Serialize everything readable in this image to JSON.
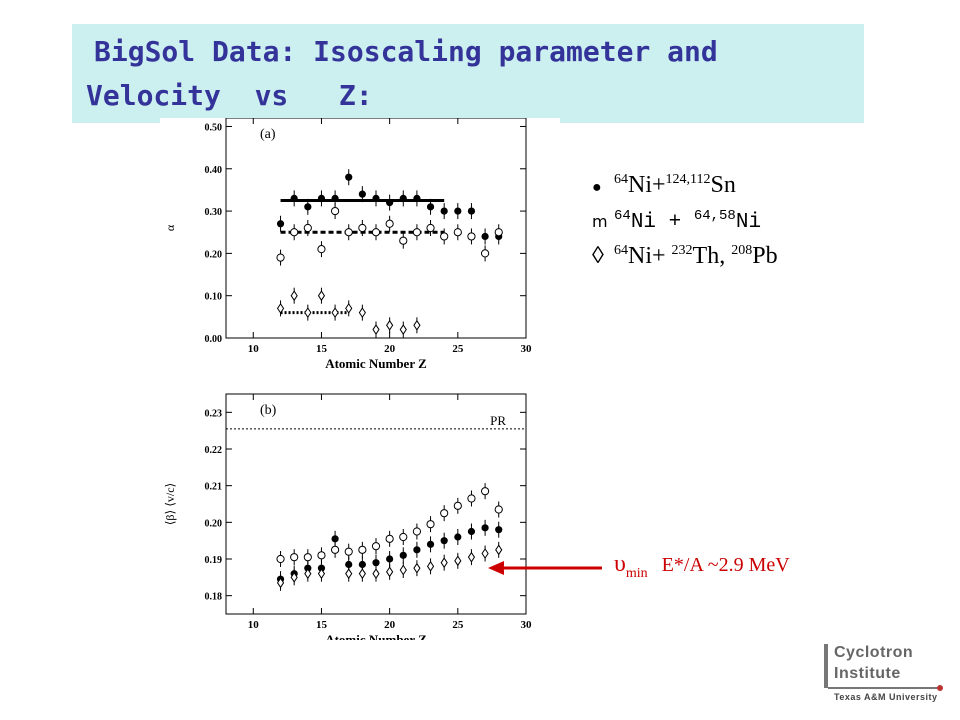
{
  "slide": {
    "title_line1": "BigSol Data: Isoscaling parameter and",
    "title_line2": "Velocity  vs   Z:"
  },
  "legend": [
    {
      "marker": "●",
      "marker_name": "filled-circle-icon",
      "a": "64",
      "b": "Ni+",
      "c": "124,112",
      "d": "Sn",
      "e": "",
      "f": "",
      "g": ""
    },
    {
      "marker": "m",
      "marker_name": "open-circle-icon",
      "a": "64",
      "b": "Ni + ",
      "c": "64,58",
      "d": "Ni",
      "e": "",
      "f": "",
      "g": ""
    },
    {
      "marker": "◊",
      "marker_name": "open-diamond-icon",
      "a": "64",
      "b": "Ni+ ",
      "c": "232",
      "d": "Th, ",
      "e": "208",
      "f": "Pb",
      "g": ""
    }
  ],
  "annotation": {
    "symbol": "υ",
    "sub": "min",
    "text": "E*/A ~2.9 MeV",
    "color": "#cc0000"
  },
  "logo": {
    "line1": "Cyclotron",
    "line2": "Institute",
    "line3": "Texas A&M University"
  },
  "colors": {
    "title_bg": "#ccf0f0",
    "title_text": "#333399",
    "arrow": "#cc0000"
  },
  "chart_data": [
    {
      "type": "scatter",
      "panel_label": "(a)",
      "xlabel": "Atomic Number Z",
      "ylabel": "α",
      "xlim": [
        8,
        30
      ],
      "ylim": [
        0,
        0.52
      ],
      "xticks": [
        10,
        15,
        20,
        25,
        30
      ],
      "yticks": [
        0.0,
        0.1,
        0.2,
        0.3,
        0.4,
        0.5
      ],
      "ytick_labels": [
        "0.00",
        "0.10",
        "0.20",
        "0.30",
        "0.40",
        "0.50"
      ],
      "series": [
        {
          "name": "64Ni+124,112Sn",
          "marker": "filled-circle",
          "x": [
            12,
            13,
            14,
            15,
            16,
            17,
            18,
            19,
            20,
            21,
            22,
            23,
            24,
            25,
            26,
            27,
            28
          ],
          "y": [
            0.27,
            0.33,
            0.31,
            0.33,
            0.33,
            0.38,
            0.34,
            0.33,
            0.32,
            0.33,
            0.33,
            0.31,
            0.3,
            0.3,
            0.3,
            0.24,
            0.24
          ]
        },
        {
          "name": "64Ni+64,58Ni",
          "marker": "open-circle",
          "x": [
            12,
            13,
            14,
            15,
            16,
            17,
            18,
            19,
            20,
            21,
            22,
            23,
            24,
            25,
            26,
            27,
            28
          ],
          "y": [
            0.19,
            0.25,
            0.26,
            0.21,
            0.3,
            0.25,
            0.26,
            0.25,
            0.27,
            0.23,
            0.25,
            0.26,
            0.24,
            0.25,
            0.24,
            0.2,
            0.25
          ]
        },
        {
          "name": "64Ni+232Th,208Pb",
          "marker": "open-diamond",
          "x": [
            12,
            13,
            14,
            15,
            16,
            17,
            18,
            19,
            20,
            21,
            22
          ],
          "y": [
            0.07,
            0.1,
            0.06,
            0.1,
            0.06,
            0.07,
            0.06,
            0.02,
            0.03,
            0.02,
            0.03
          ]
        }
      ],
      "fit_lines": [
        {
          "style": "solid",
          "x": [
            12,
            24
          ],
          "y": 0.325
        },
        {
          "style": "dashed",
          "x": [
            12,
            24
          ],
          "y": 0.25
        },
        {
          "style": "dotted",
          "x": [
            12,
            17
          ],
          "y": 0.06
        }
      ]
    },
    {
      "type": "scatter",
      "panel_label": "(b)",
      "xlabel": "Atomic Number Z",
      "ylabel": "⟨β⟩ ⟨v/c⟩",
      "xlim": [
        8,
        30
      ],
      "ylim": [
        0.175,
        0.235
      ],
      "xticks": [
        10,
        15,
        20,
        25,
        30
      ],
      "yticks": [
        0.18,
        0.19,
        0.2,
        0.21,
        0.22,
        0.23
      ],
      "ytick_labels": [
        "0.18",
        "0.19",
        "0.20",
        "0.21",
        "0.22",
        "0.23"
      ],
      "reference_line": {
        "label": "PR",
        "y": 0.2255,
        "style": "dotted"
      },
      "series": [
        {
          "name": "64Ni+124,112Sn",
          "marker": "filled-circle",
          "x": [
            12,
            13,
            14,
            15,
            16,
            17,
            18,
            19,
            20,
            21,
            22,
            23,
            24,
            25,
            26,
            27,
            28
          ],
          "y": [
            0.1845,
            0.186,
            0.1875,
            0.1875,
            0.1955,
            0.1885,
            0.1885,
            0.189,
            0.19,
            0.191,
            0.1925,
            0.194,
            0.195,
            0.196,
            0.1975,
            0.1985,
            0.198
          ]
        },
        {
          "name": "64Ni+64,58Ni",
          "marker": "open-circle",
          "x": [
            12,
            13,
            14,
            15,
            16,
            17,
            18,
            19,
            20,
            21,
            22,
            23,
            24,
            25,
            26,
            27,
            28
          ],
          "y": [
            0.19,
            0.1905,
            0.1905,
            0.191,
            0.1925,
            0.192,
            0.1925,
            0.1935,
            0.1955,
            0.196,
            0.1975,
            0.1995,
            0.2025,
            0.2045,
            0.2065,
            0.2085,
            0.2035
          ]
        },
        {
          "name": "64Ni+232Th,208Pb",
          "marker": "open-diamond",
          "x": [
            12,
            13,
            14,
            15,
            17,
            18,
            19,
            20,
            21,
            22,
            23,
            24,
            25,
            26,
            27,
            28
          ],
          "y": [
            0.1835,
            0.185,
            0.186,
            0.186,
            0.186,
            0.186,
            0.186,
            0.1865,
            0.187,
            0.1875,
            0.188,
            0.189,
            0.1895,
            0.1905,
            0.1915,
            0.1925
          ]
        }
      ]
    }
  ]
}
